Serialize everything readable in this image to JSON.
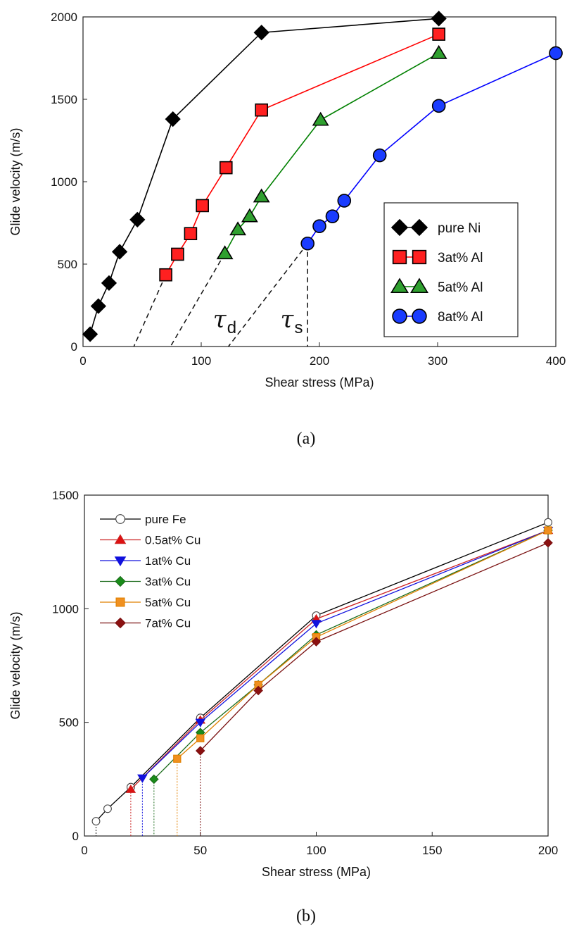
{
  "chart_data": [
    {
      "panel": "a",
      "type": "line",
      "caption": "(a)",
      "xlabel": "Shear stress (MPa)",
      "ylabel": "Glide velocity (m/s)",
      "xlim": [
        0,
        400
      ],
      "ylim": [
        0,
        2000
      ],
      "xticks": [
        0,
        100,
        200,
        300,
        400
      ],
      "yticks": [
        0,
        500,
        1000,
        1500,
        2000
      ],
      "legend_position": "lower-right",
      "series": [
        {
          "name": "pure Ni",
          "marker": "diamond",
          "color": "#000000",
          "fill": "#000000",
          "points": [
            [
              6,
              75
            ],
            [
              13,
              245
            ],
            [
              22,
              385
            ],
            [
              31,
              575
            ],
            [
              46,
              770
            ],
            [
              76,
              1380
            ],
            [
              151,
              1905
            ],
            [
              301,
              1990
            ]
          ]
        },
        {
          "name": "3at% Al",
          "marker": "square",
          "color": "#ff0000",
          "fill": "#ff2020",
          "points": [
            [
              70,
              435
            ],
            [
              80,
              560
            ],
            [
              91,
              685
            ],
            [
              101,
              855
            ],
            [
              121,
              1085
            ],
            [
              151,
              1435
            ],
            [
              301,
              1895
            ]
          ]
        },
        {
          "name": "5at% Al",
          "marker": "triangle-up",
          "color": "#008000",
          "fill": "#2fa02f",
          "points": [
            [
              120,
              565
            ],
            [
              131,
              710
            ],
            [
              141,
              790
            ],
            [
              151,
              910
            ],
            [
              201,
              1375
            ],
            [
              301,
              1780
            ]
          ]
        },
        {
          "name": "8at% Al",
          "marker": "circle",
          "color": "#0000ff",
          "fill": "#1a3cff",
          "points": [
            [
              190,
              625
            ],
            [
              200,
              730
            ],
            [
              211,
              790
            ],
            [
              221,
              885
            ],
            [
              251,
              1160
            ],
            [
              301,
              1460
            ],
            [
              400,
              1780
            ]
          ]
        }
      ],
      "extrapolations": [
        {
          "from": [
            70,
            435
          ],
          "to": [
            43,
            0
          ]
        },
        {
          "from": [
            120,
            565
          ],
          "to": [
            74,
            0
          ]
        },
        {
          "from": [
            190,
            625
          ],
          "to": [
            123,
            0
          ]
        }
      ],
      "threshold_line": {
        "x": 190,
        "y": 625
      },
      "annotations": [
        {
          "symbol": "τ",
          "subscript": "d",
          "x": 110,
          "y": 115
        },
        {
          "symbol": "τ",
          "subscript": "s",
          "x": 167,
          "y": 115
        }
      ]
    },
    {
      "panel": "b",
      "type": "line",
      "caption": "(b)",
      "xlabel": "Shear stress (MPa)",
      "ylabel": "Glide velocity (m/s)",
      "xlim": [
        0,
        200
      ],
      "ylim": [
        0,
        1500
      ],
      "xticks": [
        0,
        50,
        100,
        150,
        200
      ],
      "yticks": [
        0,
        500,
        1000,
        1500
      ],
      "legend_position": "top-left",
      "series": [
        {
          "name": "pure Fe",
          "marker": "circle-open",
          "color": "#000000",
          "fill": "#ffffff",
          "points": [
            [
              5,
              65
            ],
            [
              10,
              120
            ],
            [
              20,
              215
            ],
            [
              50,
              520
            ],
            [
              100,
              970
            ],
            [
              200,
              1380
            ]
          ]
        },
        {
          "name": "0.5at% Cu",
          "marker": "triangle-up",
          "color": "#cc2222",
          "fill": "#dd1111",
          "points": [
            [
              20,
              205
            ],
            [
              50,
              510
            ],
            [
              100,
              955
            ],
            [
              200,
              1345
            ]
          ]
        },
        {
          "name": "1at% Cu",
          "marker": "triangle-down",
          "color": "#1111dd",
          "fill": "#1111dd",
          "points": [
            [
              25,
              255
            ],
            [
              50,
              500
            ],
            [
              100,
              935
            ],
            [
              200,
              1345
            ]
          ]
        },
        {
          "name": "3at% Cu",
          "marker": "diamond",
          "color": "#1a6b1a",
          "fill": "#1a8c1a",
          "points": [
            [
              30,
              250
            ],
            [
              50,
              455
            ],
            [
              75,
              665
            ],
            [
              100,
              885
            ],
            [
              200,
              1345
            ]
          ]
        },
        {
          "name": "5at% Cu",
          "marker": "square",
          "color": "#e08000",
          "fill": "#f09020",
          "points": [
            [
              40,
              340
            ],
            [
              50,
              430
            ],
            [
              75,
              665
            ],
            [
              100,
              875
            ],
            [
              200,
              1345
            ]
          ]
        },
        {
          "name": "7at% Cu",
          "marker": "diamond",
          "color": "#7a1010",
          "fill": "#8b1010",
          "points": [
            [
              50,
              375
            ],
            [
              75,
              640
            ],
            [
              100,
              855
            ],
            [
              200,
              1290
            ]
          ]
        }
      ],
      "drop_lines": [
        {
          "x": 5,
          "y": 65,
          "color": "#000000"
        },
        {
          "x": 20,
          "y": 205,
          "color": "#cc2222"
        },
        {
          "x": 25,
          "y": 255,
          "color": "#1111dd"
        },
        {
          "x": 30,
          "y": 250,
          "color": "#1a6b1a"
        },
        {
          "x": 40,
          "y": 340,
          "color": "#e08000"
        },
        {
          "x": 50,
          "y": 375,
          "color": "#7a1010"
        }
      ]
    }
  ]
}
